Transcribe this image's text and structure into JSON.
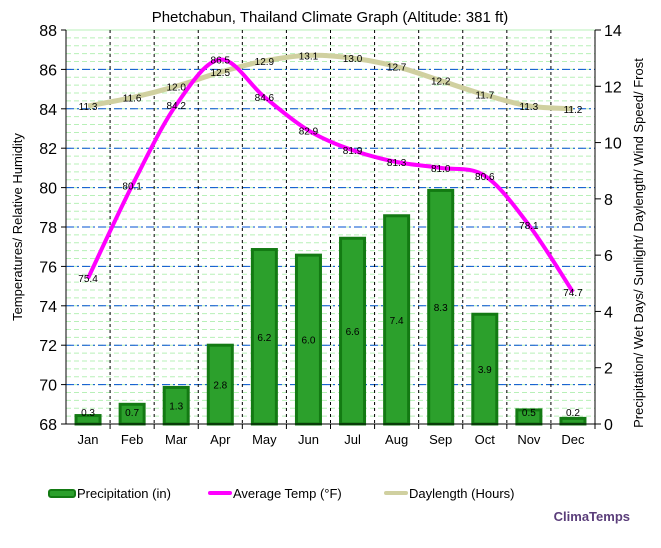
{
  "chart_data": {
    "type": "bar",
    "title": "Phetchabun, Thailand Climate Graph (Altitude: 381 ft)",
    "ylabel_left": "Temperatures/ Relative Humidity",
    "ylabel_right": "Precipitation/ Wet Days/ Sunlight/ Daylength/ Wind Speed/ Frost",
    "ylim_left": [
      68,
      88
    ],
    "ylim_right": [
      0,
      14
    ],
    "yticks_left": [
      "68",
      "70",
      "72",
      "74",
      "76",
      "78",
      "80",
      "82",
      "84",
      "86",
      "88"
    ],
    "yticks_right": [
      "0",
      "2",
      "4",
      "6",
      "8",
      "10",
      "12",
      "14"
    ],
    "categories": [
      "Jan",
      "Feb",
      "Mar",
      "Apr",
      "May",
      "Jun",
      "Jul",
      "Aug",
      "Sep",
      "Oct",
      "Nov",
      "Dec"
    ],
    "grid": true,
    "legend_placement": "bottom",
    "series": [
      {
        "name": "Precipitation (in)",
        "type": "bar",
        "axis": "right",
        "color": "#2ca02c",
        "values": [
          0.3,
          0.7,
          1.3,
          2.8,
          6.2,
          6.0,
          6.6,
          7.4,
          8.3,
          3.9,
          0.5,
          0.2
        ]
      },
      {
        "name": "Average Temp (°F)",
        "type": "line",
        "axis": "left",
        "color": "#ff00ff",
        "values": [
          75.4,
          80.1,
          84.2,
          86.5,
          84.6,
          82.9,
          81.9,
          81.3,
          81.0,
          80.6,
          78.1,
          74.7
        ]
      },
      {
        "name": "Daylength (Hours)",
        "type": "line",
        "axis": "right",
        "color": "#d0d0a0",
        "values": [
          11.3,
          11.6,
          12.0,
          12.5,
          12.9,
          13.1,
          13.0,
          12.7,
          12.2,
          11.7,
          11.3,
          11.2
        ]
      }
    ]
  },
  "brand": "ClimaTemps"
}
